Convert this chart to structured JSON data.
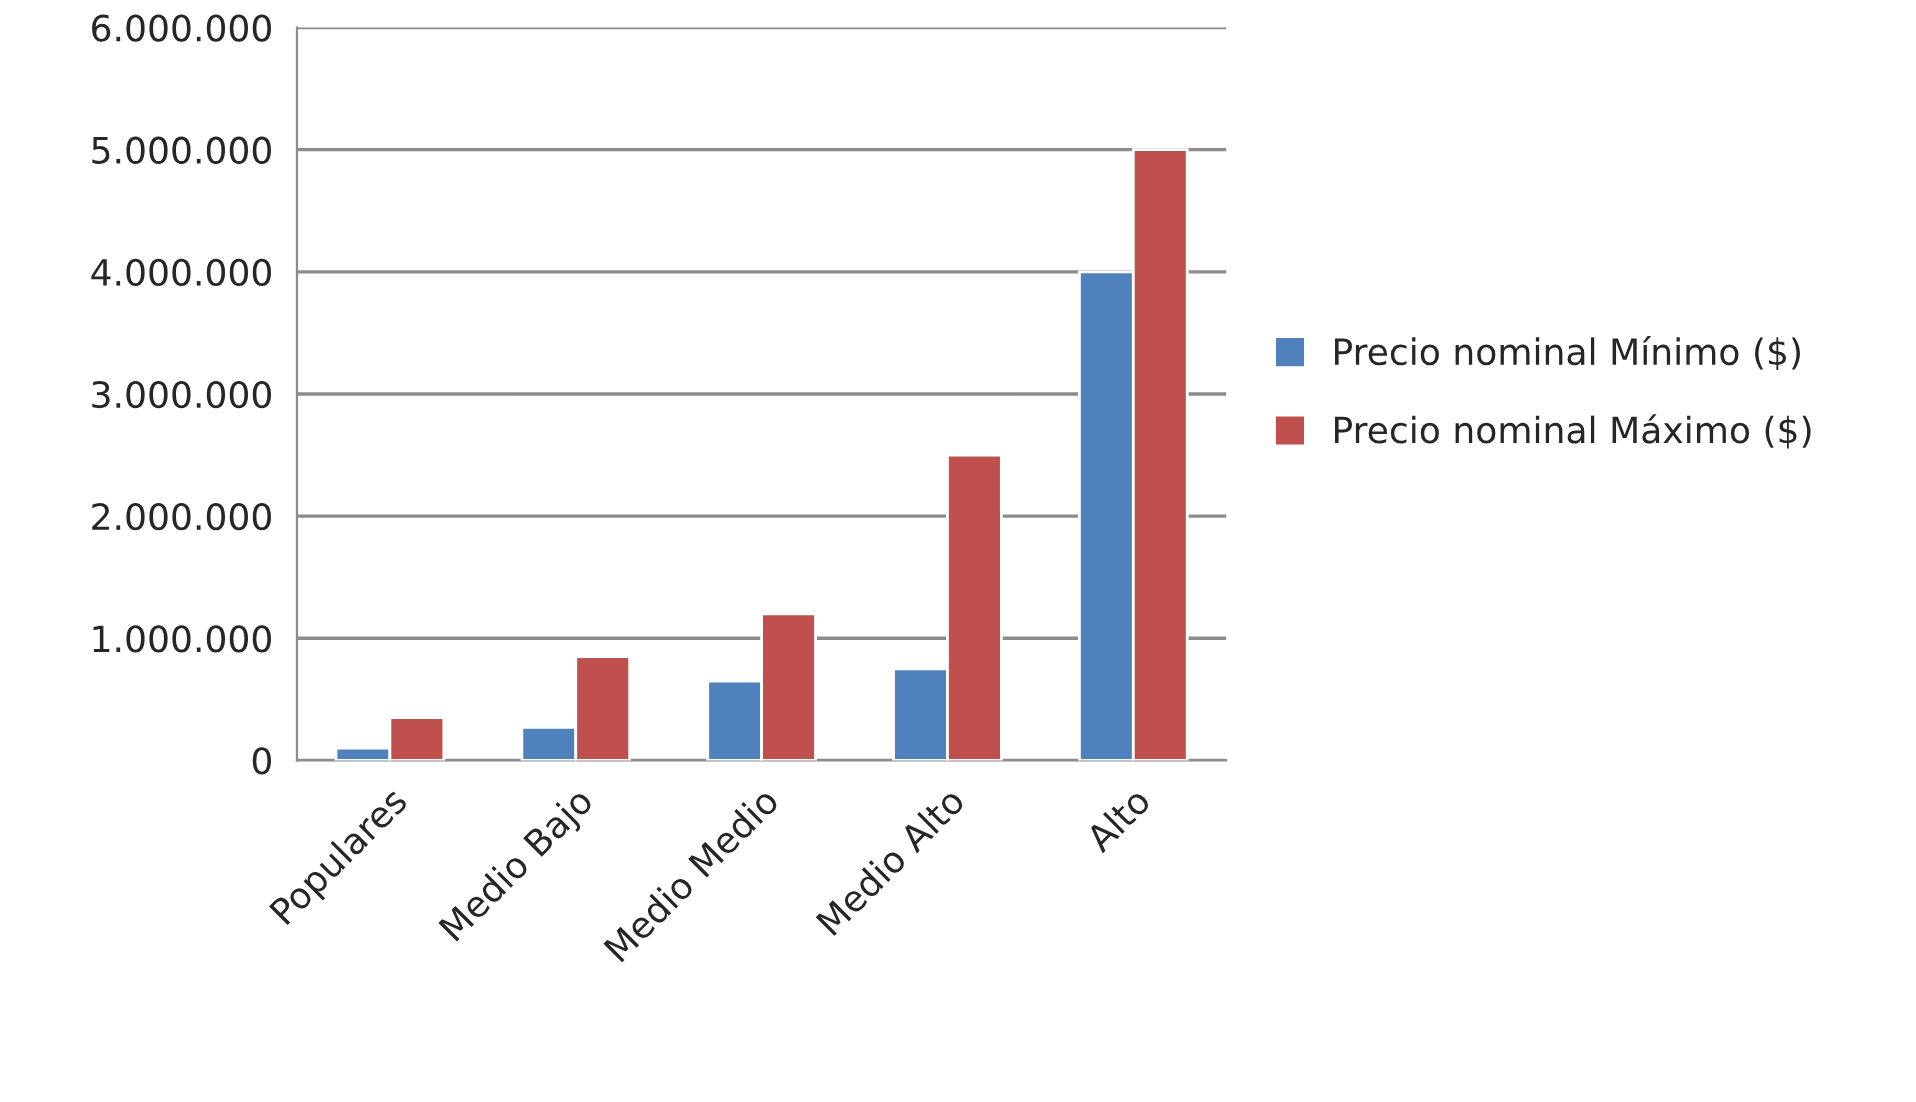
{
  "chart_data": {
    "type": "bar",
    "categories": [
      "Populares",
      "Medio Bajo",
      "Medio Medio",
      "Medio Alto",
      "Alto"
    ],
    "series": [
      {
        "name": "Precio nominal Mínimo ($)",
        "color": "#4f81bd",
        "values": [
          100000,
          270000,
          650000,
          750000,
          4000000
        ]
      },
      {
        "name": "Precio nominal Máximo ($)",
        "color": "#c0504d",
        "values": [
          350000,
          850000,
          1200000,
          2500000,
          5000000
        ]
      }
    ],
    "ylim": [
      0,
      6000000
    ],
    "yticks": [
      {
        "value": 0,
        "label": "0"
      },
      {
        "value": 1000000,
        "label": "1.000.000"
      },
      {
        "value": 2000000,
        "label": "2.000.000"
      },
      {
        "value": 3000000,
        "label": "3.000.000"
      },
      {
        "value": 4000000,
        "label": "4.000.000"
      },
      {
        "value": 5000000,
        "label": "5.000.000"
      },
      {
        "value": 6000000,
        "label": "6.000.000"
      }
    ],
    "grid": "y",
    "legend": "right"
  }
}
